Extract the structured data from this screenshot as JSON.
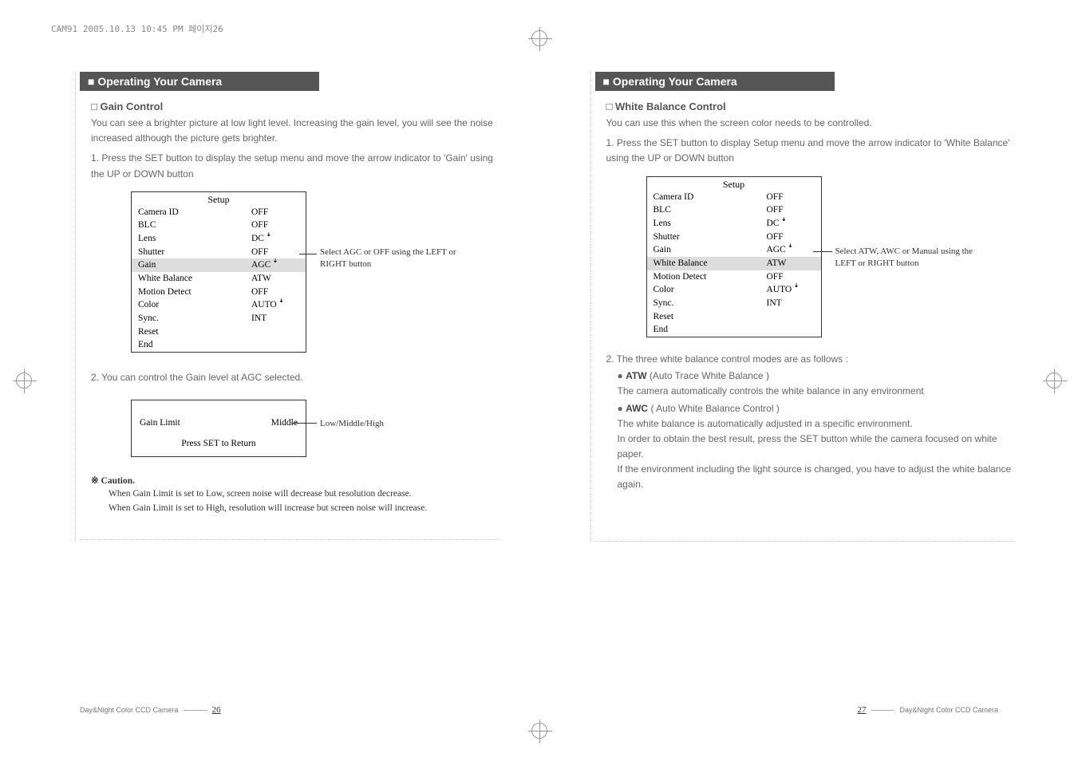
{
  "header_stamp": "CAM91  2005.10.13 10:45 PM  페이지26",
  "left": {
    "section_title": "Operating Your Camera",
    "sub_title": "Gain Control",
    "intro1": "You can see a brighter picture at low light level. Increasing the gain level, you will see the noise increased although the picture gets brighter.",
    "step1": "1. Press the SET button to display the setup menu and move the arrow indicator to 'Gain' using the UP or DOWN button",
    "setup_title": "Setup",
    "rows": [
      {
        "label": "Camera ID",
        "val": "OFF"
      },
      {
        "label": "BLC",
        "val": "OFF"
      },
      {
        "label": "Lens",
        "val": "DC ꜜ"
      },
      {
        "label": "Shutter",
        "val": "OFF"
      },
      {
        "label": "Gain",
        "val": "AGC ꜜ",
        "hl": true
      },
      {
        "label": "White Balance",
        "val": "ATW"
      },
      {
        "label": "Motion Detect",
        "val": "OFF"
      },
      {
        "label": "Color",
        "val": "AUTO ꜜ"
      },
      {
        "label": "Sync.",
        "val": "INT"
      },
      {
        "label": "Reset",
        "val": ""
      },
      {
        "label": "End",
        "val": ""
      }
    ],
    "annot": "Select AGC or OFF using the LEFT or RIGHT button",
    "step2": "2. You can control the Gain level at AGC selected.",
    "gain_label": "Gain Limit",
    "gain_val": "Middle",
    "gain_annot": "Low/Middle/High",
    "gain_return": "Press SET to Return",
    "caution_title": "※ Caution.",
    "caution1": "When Gain Limit is set to Low, screen noise will decrease but resolution decrease.",
    "caution2": "When Gain Limit is set to High, resolution will increase but screen noise will increase.",
    "footer_label": "Day&Night Color CCD Camera",
    "page_num": "26"
  },
  "right": {
    "section_title": "Operating Your Camera",
    "sub_title": "White Balance Control",
    "intro1": "You can use this when the screen color needs to be controlled.",
    "step1": "1. Press the SET button to display Setup menu and move the arrow indicator to 'White Balance' using the UP or DOWN button",
    "setup_title": "Setup",
    "rows": [
      {
        "label": "Camera ID",
        "val": "OFF"
      },
      {
        "label": "BLC",
        "val": "OFF"
      },
      {
        "label": "Lens",
        "val": "DC ꜜ"
      },
      {
        "label": "Shutter",
        "val": "OFF"
      },
      {
        "label": "Gain",
        "val": "AGC ꜜ"
      },
      {
        "label": "White Balance",
        "val": "ATW",
        "hl": true
      },
      {
        "label": "Motion Detect",
        "val": "OFF"
      },
      {
        "label": "Color",
        "val": "AUTO ꜜ"
      },
      {
        "label": "Sync.",
        "val": "INT"
      },
      {
        "label": "Reset",
        "val": ""
      },
      {
        "label": "End",
        "val": ""
      }
    ],
    "annot": "Select ATW, AWC or Manual using the LEFT or RIGHT button",
    "step2": "2. The three white balance control modes are as follows :",
    "b1_title": "ATW",
    "b1_paren": "(Auto Trace White Balance )",
    "b1_body": "The camera automatically controls the white balance in any environment",
    "b2_title": "AWC",
    "b2_paren": "( Auto White Balance Control )",
    "b2_body1": "The white balance is automatically adjusted in a specific environment.",
    "b2_body2": "In order to obtain the best result, press the SET button while the camera focused on white paper.",
    "b2_body3": "If the environment including the light source is changed, you have to adjust the white balance again.",
    "footer_label": "Day&Night Color CCD Camera",
    "page_num": "27"
  },
  "colors": {
    "header_bg": "#555555",
    "text": "#666666",
    "highlight": "#dddddd"
  }
}
